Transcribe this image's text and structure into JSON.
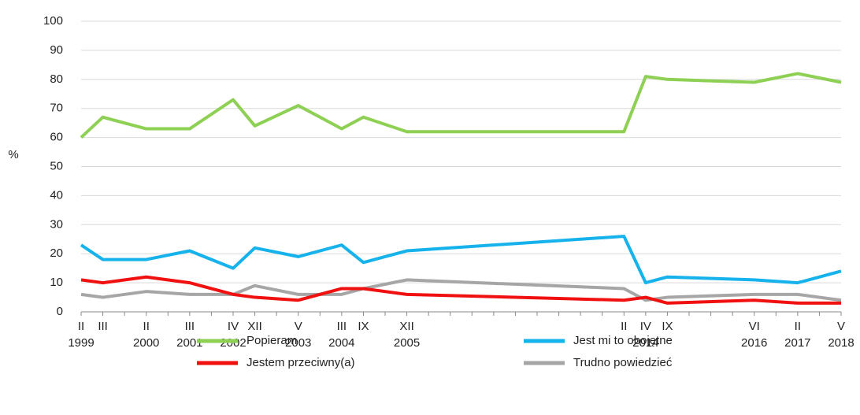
{
  "chart_data": {
    "type": "line",
    "y_label": "%",
    "categories": [
      "II",
      "III",
      "II",
      "III",
      "IV",
      "XII",
      "V",
      "III",
      "IX",
      "XII",
      "II",
      "IV",
      "IX",
      "VI",
      "II",
      "V"
    ],
    "years": [
      "1999",
      null,
      "2000",
      "2001",
      "2002",
      null,
      "2003",
      "2004",
      null,
      "2005",
      null,
      "2014",
      null,
      "2016",
      "2017",
      "2018"
    ],
    "x": [
      0,
      1,
      3,
      5,
      7,
      8,
      10,
      12,
      13,
      15,
      25,
      26,
      27,
      31,
      33,
      35
    ],
    "xlim": [
      0,
      35
    ],
    "xticks": [
      0,
      1,
      2,
      3,
      4,
      5,
      6,
      7,
      8,
      9,
      10,
      11,
      12,
      13,
      14,
      15,
      16,
      17,
      18,
      19,
      20,
      21,
      22,
      23,
      24,
      25,
      26,
      27,
      28,
      29,
      30,
      31,
      32,
      33,
      34,
      35
    ],
    "ylim": [
      0,
      100
    ],
    "yticks": [
      0,
      10,
      20,
      30,
      40,
      50,
      60,
      70,
      80,
      90,
      100
    ],
    "grid": true,
    "series": [
      {
        "name": "Popieram",
        "color": "#8dd053",
        "values": [
          60,
          67,
          63,
          63,
          73,
          64,
          71,
          63,
          67,
          62,
          62,
          81,
          80,
          79,
          82,
          79
        ]
      },
      {
        "name": "Jest mi to obojętne",
        "color": "#16b2ec",
        "values": [
          23,
          18,
          18,
          21,
          15,
          22,
          19,
          23,
          17,
          21,
          26,
          10,
          12,
          11,
          10,
          14
        ]
      },
      {
        "name": "Jestem przeciwny(a)",
        "color": "#f01010",
        "values": [
          11,
          10,
          12,
          10,
          6,
          5,
          4,
          8,
          8,
          6,
          4,
          5,
          3,
          4,
          3,
          3
        ]
      },
      {
        "name": "Trudno powiedzieć",
        "color": "#a6a6a6",
        "values": [
          6,
          5,
          7,
          6,
          6,
          9,
          6,
          6,
          8,
          11,
          8,
          4,
          5,
          6,
          6,
          4
        ]
      }
    ]
  }
}
